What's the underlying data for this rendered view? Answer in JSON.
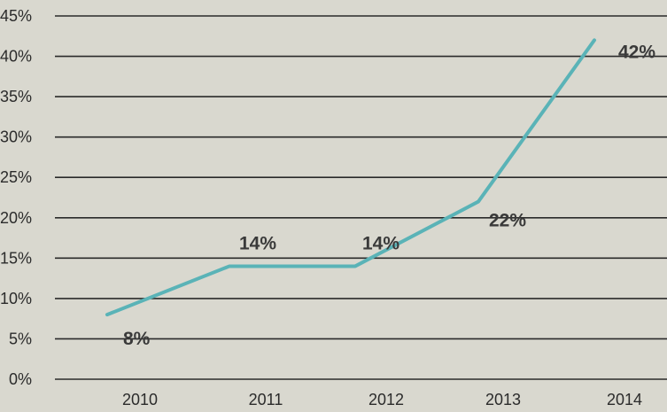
{
  "chart_data": {
    "type": "line",
    "title": "",
    "xlabel": "",
    "ylabel": "",
    "categories": [
      "2010",
      "2011",
      "2012",
      "2013",
      "2014"
    ],
    "series": [
      {
        "values": [
          8,
          14,
          14,
          22,
          42
        ],
        "data_labels": [
          "8%",
          "14%",
          "14%",
          "22%",
          "42%"
        ],
        "color": "#5ab3b7"
      }
    ],
    "ylim": [
      0,
      45
    ],
    "yticks": [
      0,
      5,
      10,
      15,
      20,
      25,
      30,
      35,
      40,
      45
    ],
    "ytick_labels": [
      "0%",
      "5%",
      "10%",
      "15%",
      "20%",
      "25%",
      "30%",
      "35%",
      "40%",
      "45%"
    ],
    "grid": true,
    "legend": "none",
    "colors": {
      "background": "#d9d8cf",
      "grid": "#2a2a2a",
      "text": "#2b2b2b"
    }
  }
}
